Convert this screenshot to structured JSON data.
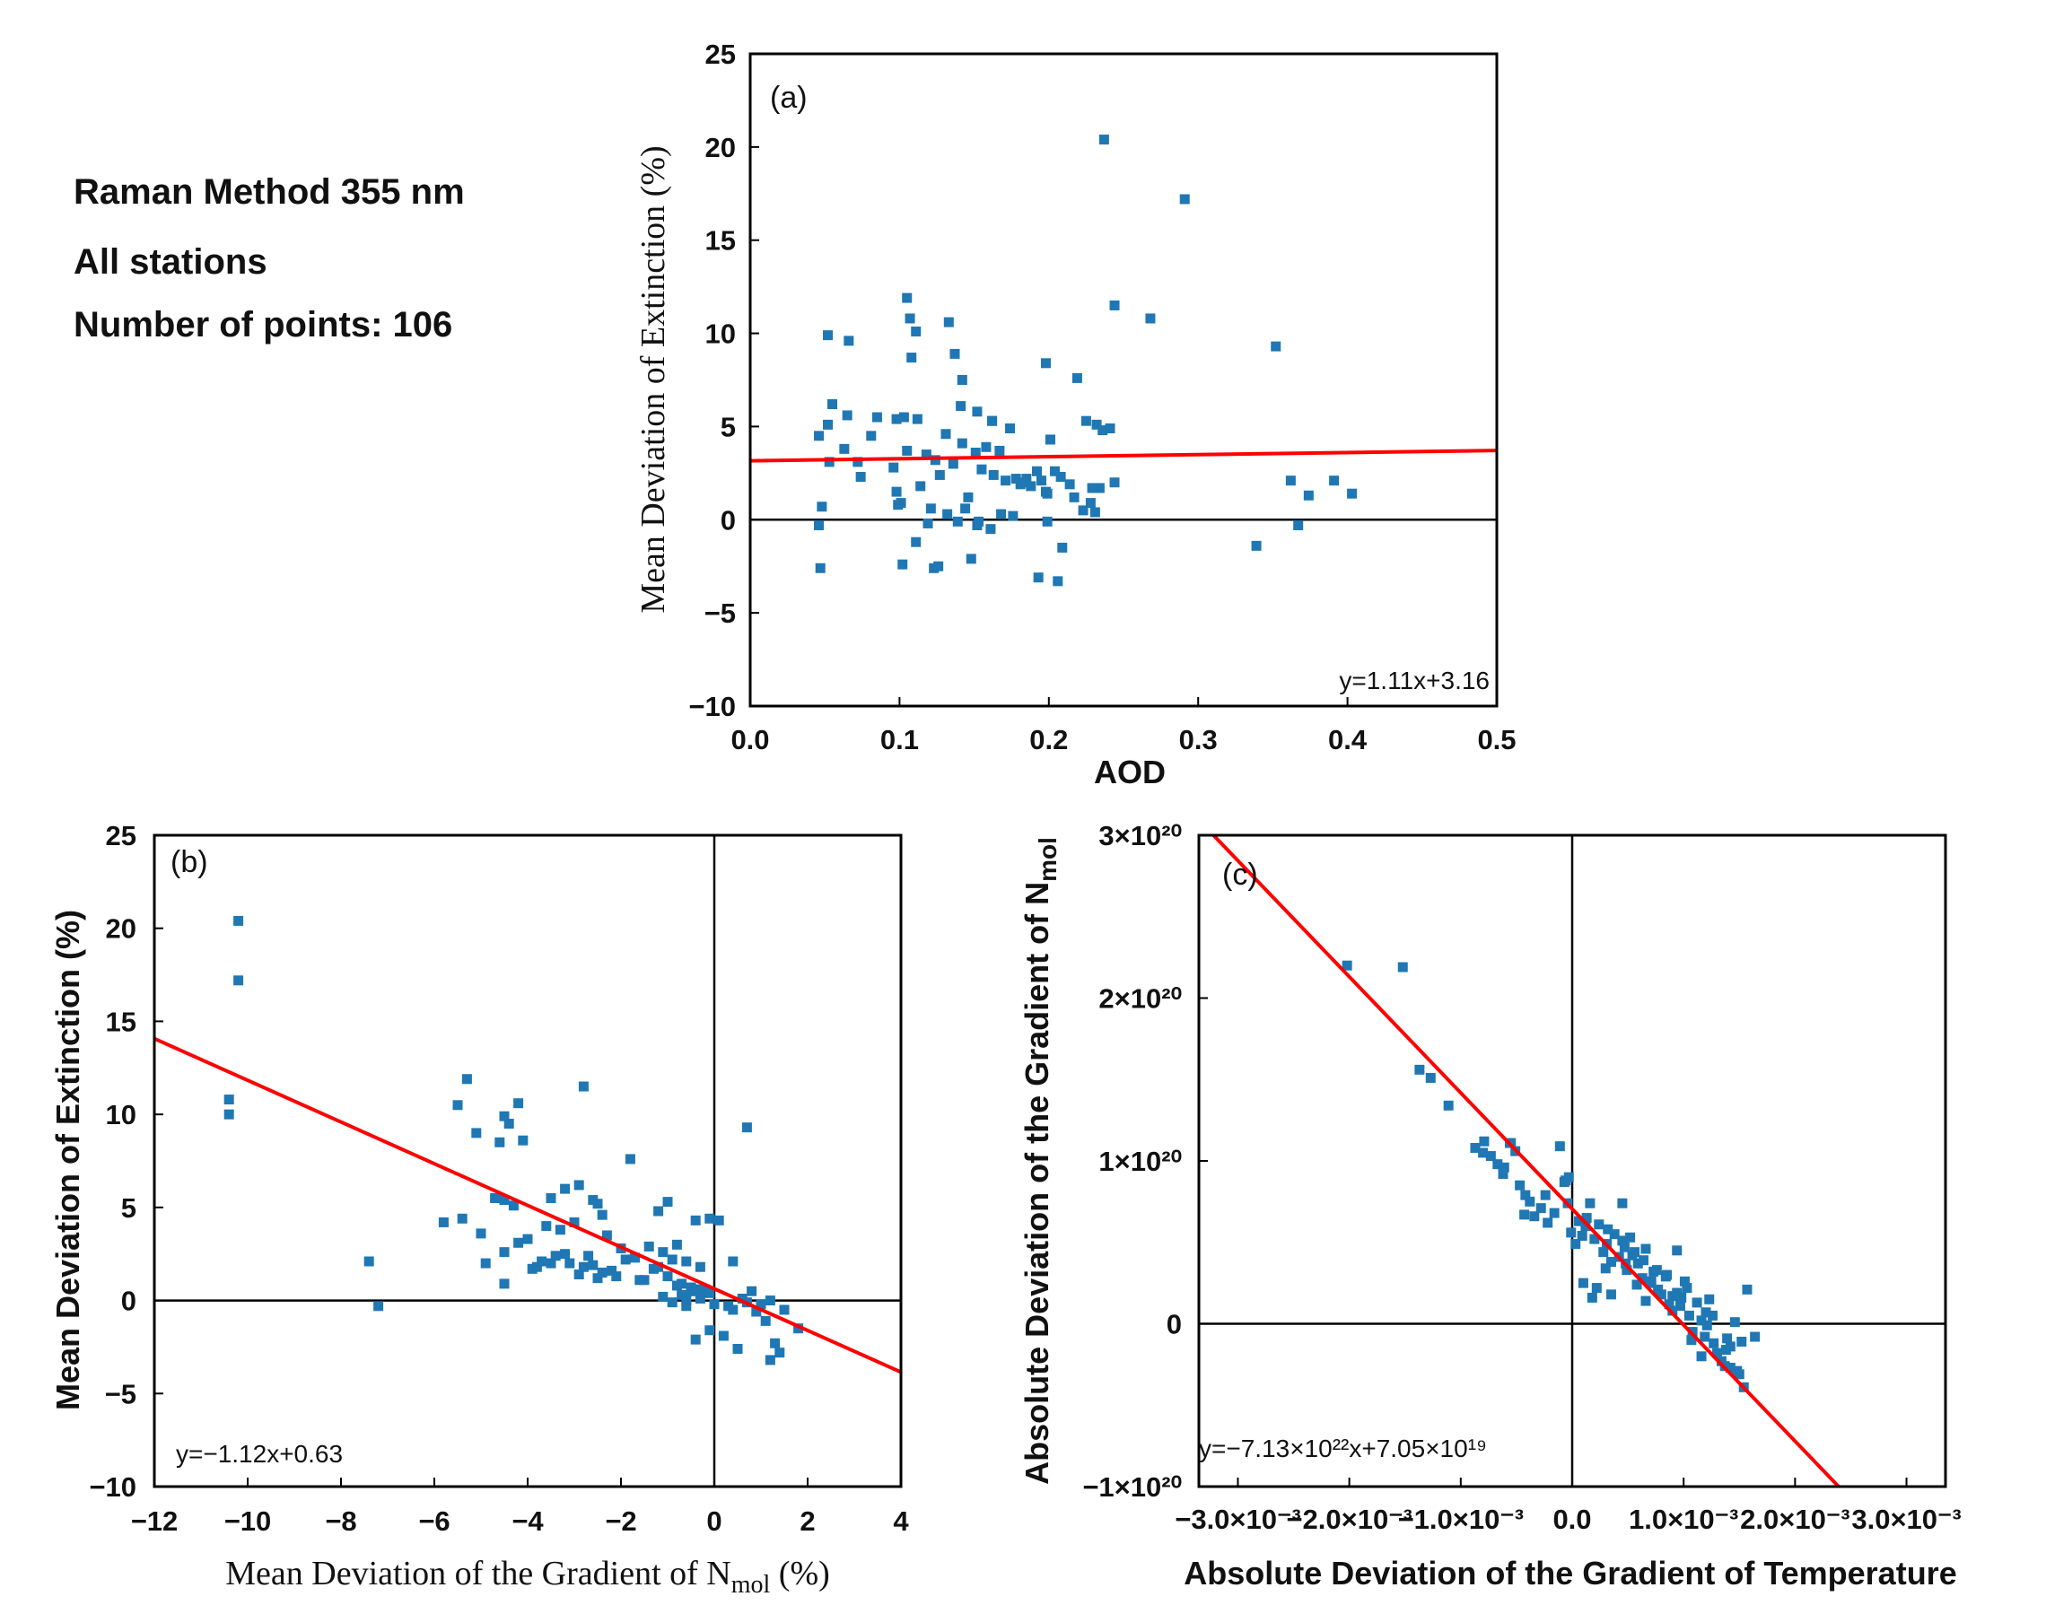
{
  "header": {
    "title": "Raman Method  355 nm",
    "stations": "All stations",
    "points": "Number of points: 106"
  },
  "colors": {
    "marker": "#1f77b4",
    "fit": "#ff0000",
    "axis": "#000000"
  },
  "chart_data": [
    {
      "id": "a",
      "type": "scatter",
      "panel_label": "(a)",
      "xlabel": "AOD",
      "ylabel": "Mean Deviation of Extinction (%)",
      "xlim": [
        0,
        0.5
      ],
      "ylim": [
        -10,
        25
      ],
      "xticks": [
        0,
        0.1,
        0.2,
        0.3,
        0.4,
        0.5
      ],
      "yticks": [
        -10,
        -5,
        0,
        5,
        10,
        15,
        20,
        25
      ],
      "xtick_labels": [
        "0.0",
        "0.1",
        "0.2",
        "0.3",
        "0.4",
        "0.5"
      ],
      "ytick_labels": [
        "−10",
        "−5",
        "0",
        "5",
        "10",
        "15",
        "20",
        "25"
      ],
      "zero_lines": {
        "x": false,
        "y": true
      },
      "fit": {
        "slope": 1.11,
        "intercept": 3.16,
        "equation": "y=1.11x+3.16"
      },
      "x": [
        0.237,
        0.291,
        0.244,
        0.268,
        0.352,
        0.105,
        0.107,
        0.133,
        0.052,
        0.066,
        0.111,
        0.108,
        0.137,
        0.198,
        0.219,
        0.055,
        0.065,
        0.085,
        0.098,
        0.112,
        0.131,
        0.141,
        0.152,
        0.162,
        0.174,
        0.201,
        0.225,
        0.232,
        0.236,
        0.241,
        0.046,
        0.053,
        0.063,
        0.072,
        0.081,
        0.096,
        0.105,
        0.118,
        0.124,
        0.136,
        0.142,
        0.151,
        0.158,
        0.167,
        0.171,
        0.178,
        0.183,
        0.188,
        0.195,
        0.204,
        0.208,
        0.214,
        0.228,
        0.244,
        0.048,
        0.074,
        0.098,
        0.114,
        0.127,
        0.146,
        0.155,
        0.163,
        0.185,
        0.198,
        0.217,
        0.234,
        0.101,
        0.121,
        0.132,
        0.144,
        0.168,
        0.181,
        0.192,
        0.223,
        0.362,
        0.374,
        0.391,
        0.403,
        0.046,
        0.099,
        0.119,
        0.139,
        0.152,
        0.176,
        0.199,
        0.231,
        0.367,
        0.047,
        0.111,
        0.126,
        0.148,
        0.161,
        0.193,
        0.209,
        0.229,
        0.206,
        0.339,
        0.153,
        0.102,
        0.123,
        0.052,
        0.103,
        0.201,
        0.199,
        0.162,
        0.142
      ],
      "y": [
        20.4,
        17.2,
        11.5,
        10.8,
        9.3,
        11.9,
        10.8,
        10.6,
        9.9,
        9.6,
        10.1,
        8.7,
        8.9,
        8.4,
        7.6,
        6.2,
        5.6,
        5.5,
        5.4,
        5.4,
        4.6,
        6.1,
        5.8,
        5.3,
        4.9,
        4.3,
        5.3,
        5.1,
        4.8,
        4.9,
        4.5,
        3.1,
        3.8,
        3.1,
        4.5,
        2.8,
        3.7,
        3.5,
        3.2,
        3.0,
        4.1,
        3.6,
        3.9,
        3.7,
        2.1,
        2.2,
        2.0,
        1.8,
        2.1,
        2.6,
        2.3,
        1.9,
        0.9,
        2.0,
        0.7,
        2.3,
        1.5,
        1.8,
        2.4,
        1.2,
        2.7,
        2.4,
        2.2,
        1.5,
        1.2,
        1.7,
        0.9,
        0.6,
        0.3,
        0.6,
        0.3,
        1.9,
        2.6,
        0.5,
        2.1,
        1.3,
        2.1,
        1.4,
        -0.3,
        0.8,
        -0.2,
        -0.1,
        -0.3,
        0.2,
        -0.1,
        0.4,
        -0.3,
        -2.6,
        -1.2,
        -2.5,
        -2.1,
        -0.5,
        -3.1,
        -1.5,
        1.7,
        -3.3,
        -1.4,
        -0.1,
        -2.4,
        -2.6,
        5.1,
        5.5,
        4.3,
        1.4,
        5.3,
        7.5
      ]
    },
    {
      "id": "b",
      "type": "scatter",
      "panel_label": "(b)",
      "xlabel": "Mean Deviation of the Gradient of N",
      "xlabel_sub": "mol",
      "xlabel_tail": " (%)",
      "ylabel": "Mean Deviation of Extinction (%)",
      "xlim": [
        -12,
        4
      ],
      "ylim": [
        -10,
        25
      ],
      "xticks": [
        -12,
        -10,
        -8,
        -6,
        -4,
        -2,
        0,
        2,
        4
      ],
      "yticks": [
        -10,
        -5,
        0,
        5,
        10,
        15,
        20,
        25
      ],
      "xtick_labels": [
        "−12",
        "−10",
        "−8",
        "−6",
        "−4",
        "−2",
        "0",
        "2",
        "4"
      ],
      "ytick_labels": [
        "−10",
        "−5",
        "0",
        "5",
        "10",
        "15",
        "20",
        "25"
      ],
      "zero_lines": {
        "x": true,
        "y": true
      },
      "fit": {
        "slope": -1.12,
        "intercept": 0.63,
        "equation": "y=−1.12x+0.63"
      },
      "x": [
        -10.2,
        -10.2,
        -10.4,
        -10.4,
        -7.4,
        -7.2,
        -5.3,
        -5.5,
        -5.1,
        -4.5,
        -4.2,
        -4.4,
        -4.6,
        -4.1,
        -2.8,
        -4.5,
        -3.5,
        -3.2,
        -2.9,
        -2.6,
        -2.5,
        -2.4,
        -1.8,
        -1.2,
        -1.0,
        -0.8,
        0.7,
        -0.4,
        -5.8,
        -5.4,
        -5.0,
        -4.7,
        -4.3,
        -4.0,
        -3.6,
        -3.3,
        -3.0,
        -2.7,
        -2.3,
        -2.0,
        -1.7,
        -1.4,
        -1.1,
        -0.9,
        -0.6,
        -0.3,
        -0.1,
        0.1,
        -4.9,
        -4.5,
        -4.2,
        -3.9,
        -3.7,
        -3.4,
        -3.1,
        -2.8,
        -2.6,
        -2.4,
        -2.2,
        -1.9,
        -1.6,
        -1.3,
        -1.0,
        -0.7,
        -0.5,
        -0.2,
        -3.8,
        -3.5,
        -3.2,
        -2.9,
        -2.5,
        -2.1,
        -1.5,
        -1.2,
        -0.8,
        -0.5,
        -0.3,
        0.4,
        -4.5,
        -1.1,
        -0.9,
        -0.7,
        -0.6,
        -0.4,
        -0.1,
        0.3,
        0.6,
        0.8,
        1.0,
        1.2,
        1.5,
        1.8,
        -0.6,
        -0.3,
        0.0,
        0.4,
        0.7,
        0.9,
        1.1,
        1.3,
        1.4,
        -0.4,
        -0.1,
        0.5,
        1.2,
        0.2
      ],
      "y": [
        20.4,
        17.2,
        10.8,
        10.0,
        2.1,
        -0.3,
        11.9,
        10.5,
        9.0,
        9.9,
        10.6,
        9.5,
        8.5,
        8.6,
        11.5,
        5.4,
        5.5,
        6.0,
        6.2,
        5.4,
        5.2,
        4.6,
        7.6,
        4.8,
        5.3,
        3.0,
        9.3,
        4.3,
        4.2,
        4.4,
        3.6,
        5.5,
        5.1,
        3.3,
        4.0,
        3.8,
        4.2,
        2.4,
        3.5,
        2.8,
        2.3,
        2.9,
        2.6,
        2.2,
        2.1,
        1.8,
        4.4,
        4.3,
        2.0,
        2.6,
        3.1,
        1.7,
        2.1,
        2.4,
        2.0,
        1.8,
        1.9,
        1.5,
        1.6,
        2.2,
        1.1,
        1.7,
        1.3,
        0.9,
        0.7,
        0.6,
        1.8,
        2.0,
        2.5,
        1.4,
        1.2,
        1.3,
        1.1,
        1.8,
        0.8,
        0.5,
        0.6,
        2.1,
        0.9,
        0.2,
        -0.1,
        0.3,
        0.0,
        0.5,
        0.4,
        -0.3,
        0.1,
        0.5,
        -0.2,
        0.0,
        -0.5,
        -1.5,
        -0.3,
        0.1,
        -0.2,
        -0.5,
        -0.1,
        -0.6,
        -1.1,
        -2.3,
        -2.8,
        -2.1,
        -1.6,
        -2.6,
        -3.2,
        -1.9
      ]
    },
    {
      "id": "c",
      "type": "scatter",
      "panel_label": "(c)",
      "xlabel": "Absolute Deviation of the Gradient of Temperature",
      "ylabel": "Absolute Deviation of the Gradient of N",
      "ylabel_sub": "mol",
      "xlim": [
        -0.00335,
        0.00335
      ],
      "ylim": [
        -1e+20,
        3e+20
      ],
      "xticks": [
        -0.003,
        -0.002,
        -0.001,
        0,
        0.001,
        0.002,
        0.003
      ],
      "yticks": [
        -1e+20,
        0,
        1e+20,
        2e+20,
        3e+20
      ],
      "xtick_labels": [
        "−3.0×10⁻³",
        "−2.0×10⁻³",
        "−1.0×10⁻³",
        "0.0",
        "1.0×10⁻³",
        "2.0×10⁻³",
        "3.0×10⁻³"
      ],
      "ytick_labels": [
        "−1×10²⁰",
        "0",
        "1×10²⁰",
        "2×10²⁰",
        "3×10²⁰"
      ],
      "zero_lines": {
        "x": true,
        "y": true
      },
      "fit": {
        "slope": -7.13e+22,
        "intercept": 7.05e+19,
        "equation": "y=−7.13×10²²x+7.05×10¹⁹"
      },
      "x": [
        -0.00202,
        -0.00152,
        -0.00137,
        -0.00127,
        -0.00111,
        -0.00087,
        -0.00079,
        -0.00073,
        -0.00067,
        -0.00061,
        -0.00056,
        -0.00051,
        -0.00047,
        -0.00042,
        -0.00038,
        -0.00034,
        -0.00028,
        -0.00022,
        -0.00016,
        -0.00011,
        -7e-05,
        -4e-05,
        -1e-05,
        3e-05,
        6e-05,
        9e-05,
        0.00013,
        0.00016,
        0.0002,
        0.00024,
        0.00028,
        0.00031,
        0.00035,
        0.00038,
        0.00042,
        0.00045,
        0.00049,
        0.00052,
        0.00056,
        0.00059,
        0.00063,
        0.00066,
        0.0007,
        0.00073,
        0.00077,
        0.0008,
        0.00084,
        0.00087,
        0.0009,
        0.00094,
        0.00097,
        0.00101,
        0.00105,
        0.00108,
        0.00112,
        0.00116,
        0.00119,
        0.00123,
        0.00127,
        0.0013,
        0.00134,
        0.00138,
        0.00142,
        0.00146,
        0.0015,
        0.00154,
        -0.0008,
        -0.00062,
        -0.00043,
        -0.00024,
        -6e-05,
        0.00012,
        0.0003,
        0.00048,
        0.00066,
        0.00085,
        0.00103,
        0.00121,
        0.00139,
        0.00157,
        0.0001,
        0.00032,
        0.00054,
        0.00076,
        0.00098,
        0.0012,
        0.00142,
        0.00164,
        0.00022,
        0.00058,
        0.00094,
        0.00126,
        0.00152,
        0.00035,
        0.00071,
        0.00107,
        0.00137,
        -0.00055,
        0.00045,
        0.0009,
        0.00116,
        0.00148,
        0.00018,
        0.00064,
        -3e-05,
        0.00047
      ],
      "y": [
        2.2e+20,
        2.19e+20,
        1.56e+20,
        1.51e+20,
        1.34e+20,
        1.08e+20,
        1.12e+20,
        1.03e+20,
        9.8e+19,
        9.6e+19,
        1.11e+20,
        1.06e+20,
        8.5e+19,
        7.9e+19,
        7.5e+19,
        6.6e+19,
        7.1e+19,
        6.2e+19,
        6.8e+19,
        1.09e+20,
        8.7e+19,
        7.4e+19,
        5.6e+19,
        4.9e+19,
        6.3e+19,
        5.4e+19,
        6.5e+19,
        7.4e+19,
        5.2e+19,
        6.1e+19,
        4.4e+19,
        4.9e+19,
        3.8e+19,
        5.5e+19,
        4.1e+19,
        7.4e+19,
        3.3e+19,
        5.3e+19,
        4.4e+19,
        3.7e+19,
        2.8e+19,
        4.6e+19,
        2.5e+19,
        3.2e+19,
        2.1e+19,
        1.8e+19,
        2.9e+19,
        1.2e+19,
        1.7e+19,
        4.5e+19,
        1.1e+19,
        2.6e+19,
        5e+18,
        -5e+18,
        1.3e+19,
        2e+18,
        -8e+18,
        1.5e+19,
        -1.2e+19,
        -1.8e+19,
        -2.3e+19,
        -1.6e+19,
        -2.7e+19,
        1e+18,
        -3.1e+19,
        -3.9e+19,
        1.05e+20,
        9.2e+19,
        6.7e+19,
        7.9e+19,
        8.8e+19,
        6e+19,
        3.4e+19,
        3.7e+19,
        1.4e+19,
        3e+19,
        2.2e+19,
        -1e+18,
        -9e+18,
        2.1e+19,
        2.5e+19,
        5.8e+19,
        4.2e+19,
        3.3e+19,
        1.6e+19,
        7e+18,
        -1.4e+19,
        -8e+18,
        2.2e+19,
        2.4e+19,
        1.9e+19,
        5e+18,
        -1.1e+19,
        1.8e+19,
        2.6e+19,
        -1e+19,
        -2.6e+19,
        1.11e+20,
        5.1e+19,
        8e+18,
        -2e+19,
        -2.9e+19,
        1.6e+19,
        3.9e+19,
        9e+19,
        4.7e+19
      ]
    }
  ]
}
